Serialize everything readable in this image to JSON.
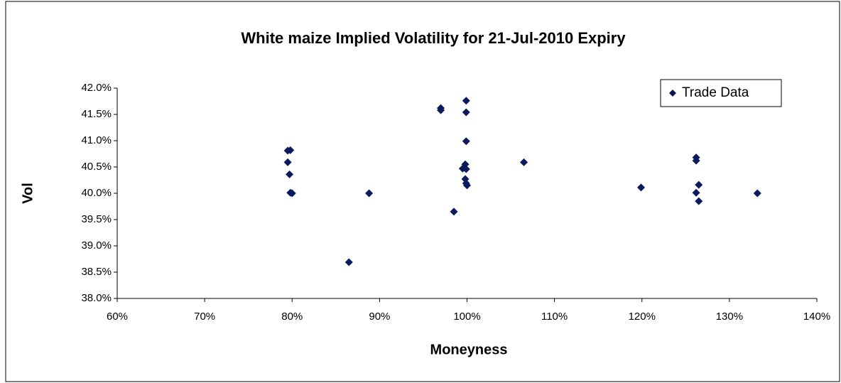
{
  "chart_data": {
    "type": "scatter",
    "title": "White maize Implied Volatility for 21-Jul-2010 Expiry",
    "xlabel": "Moneyness",
    "ylabel": "Vol",
    "series": [
      {
        "name": "Trade Data",
        "color": "#0a1a5c",
        "x": [
          79.8,
          79.5,
          79.5,
          79.7,
          79.8,
          80.0,
          86.5,
          88.8,
          97.0,
          97.0,
          98.5,
          99.9,
          99.9,
          99.9,
          99.8,
          99.5,
          99.9,
          99.8,
          99.9,
          100.0,
          106.5,
          119.9,
          126.2,
          126.2,
          126.5,
          126.2,
          126.5,
          133.2
        ],
        "y": [
          40.82,
          40.81,
          40.59,
          40.36,
          40.01,
          40.0,
          38.69,
          40.0,
          41.62,
          41.58,
          39.65,
          41.76,
          41.54,
          40.99,
          40.55,
          40.47,
          40.46,
          40.27,
          40.19,
          40.15,
          40.59,
          40.11,
          40.68,
          40.62,
          40.16,
          40.01,
          39.85,
          40.0
        ]
      }
    ],
    "xlim": [
      60,
      140
    ],
    "xticks": [
      {
        "value": 60,
        "label": "60%"
      },
      {
        "value": 70,
        "label": "70%"
      },
      {
        "value": 80,
        "label": "80%"
      },
      {
        "value": 90,
        "label": "90%"
      },
      {
        "value": 100,
        "label": "100%"
      },
      {
        "value": 110,
        "label": "110%"
      },
      {
        "value": 120,
        "label": "120%"
      },
      {
        "value": 130,
        "label": "130%"
      },
      {
        "value": 140,
        "label": "140%"
      }
    ],
    "ylim": [
      38,
      42
    ],
    "yticks": [
      {
        "value": 38,
        "label": "38.0%"
      },
      {
        "value": 38.5,
        "label": "38.5%"
      },
      {
        "value": 39,
        "label": "39.0%"
      },
      {
        "value": 39.5,
        "label": "39.5%"
      },
      {
        "value": 40,
        "label": "40.0%"
      },
      {
        "value": 40.5,
        "label": "40.5%"
      },
      {
        "value": 41,
        "label": "41.0%"
      },
      {
        "value": 41.5,
        "label": "41.5%"
      },
      {
        "value": 42,
        "label": "42.0%"
      }
    ],
    "grid": false,
    "legend": "upper right"
  }
}
